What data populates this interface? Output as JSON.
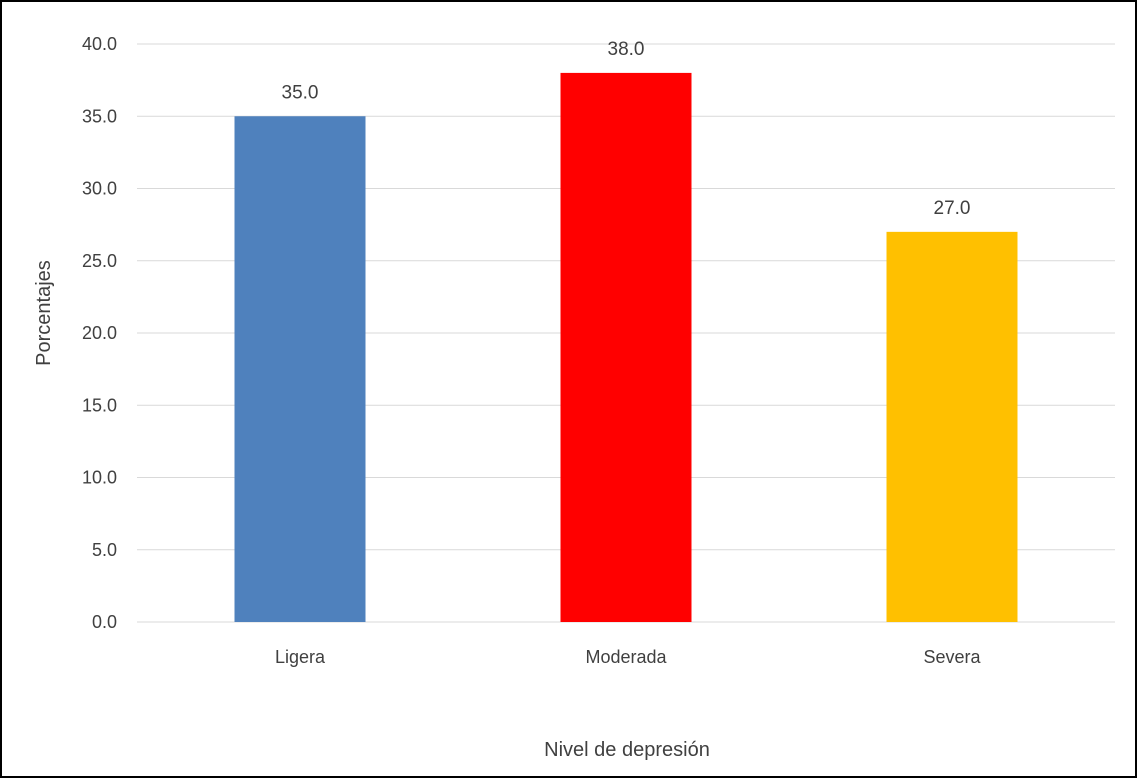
{
  "chart_data": {
    "type": "bar",
    "title": "",
    "xlabel": "Nivel de depresión",
    "ylabel": "Porcentajes",
    "categories": [
      "Ligera",
      "Moderada",
      "Severa"
    ],
    "values": [
      35.0,
      38.0,
      27.0
    ],
    "data_labels": [
      "35.0",
      "38.0",
      "27.0"
    ],
    "colors": [
      "#4f81bd",
      "#ff0000",
      "#ffc000"
    ],
    "ylim": [
      0,
      40
    ],
    "yticks": [
      "0.0",
      "5.0",
      "10.0",
      "15.0",
      "20.0",
      "25.0",
      "30.0",
      "35.0",
      "40.0"
    ],
    "ytick_values": [
      0,
      5,
      10,
      15,
      20,
      25,
      30,
      35,
      40
    ],
    "grid": true,
    "legend": "none"
  }
}
